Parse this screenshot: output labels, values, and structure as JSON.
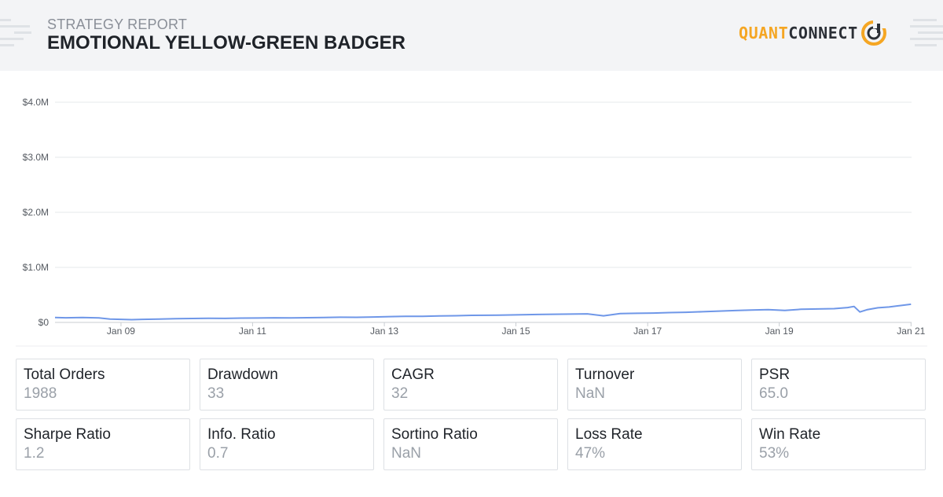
{
  "header": {
    "subtitle": "STRATEGY REPORT",
    "title": "EMOTIONAL YELLOW-GREEN BADGER",
    "brand_part1": "QUANT",
    "brand_part2": "CONNECT",
    "brand_color": "#f5a623"
  },
  "chart_data": {
    "type": "line",
    "title": "",
    "xlabel": "",
    "ylabel": "",
    "ylim": [
      0,
      4000000
    ],
    "y_ticks": [
      0,
      1000000,
      2000000,
      3000000,
      4000000
    ],
    "y_tick_labels": [
      "$0",
      "$1.0M",
      "$2.0M",
      "$3.0M",
      "$4.0M"
    ],
    "x_range": [
      "2008-01-01",
      "2021-01-04"
    ],
    "x_ticks": [
      "2009-01-01",
      "2011-01-01",
      "2013-01-01",
      "2015-01-01",
      "2017-01-01",
      "2019-01-01",
      "2021-01-01"
    ],
    "x_tick_labels": [
      "Jan 09",
      "Jan 11",
      "Jan 13",
      "Jan 15",
      "Jan 17",
      "Jan 19",
      "Jan 21"
    ],
    "grid": true,
    "legend": "none",
    "line_color": "#6f97e8",
    "series": [
      {
        "x": [
          "2008-01-01",
          "2008-03-01",
          "2008-06-01",
          "2008-09-01",
          "2008-11-01",
          "2009-01-01",
          "2009-03-01",
          "2009-05-01",
          "2009-08-01",
          "2009-11-01",
          "2010-02-01",
          "2010-05-01",
          "2010-08-01",
          "2010-11-01",
          "2011-02-01",
          "2011-05-01",
          "2011-08-01",
          "2011-11-01",
          "2012-02-01",
          "2012-05-01",
          "2012-08-01",
          "2012-11-01",
          "2013-02-01",
          "2013-05-01",
          "2013-08-01",
          "2013-11-01",
          "2014-02-01",
          "2014-05-01",
          "2014-08-01",
          "2014-11-01",
          "2015-02-01",
          "2015-05-01",
          "2015-08-01",
          "2015-11-01",
          "2016-02-01",
          "2016-05-01",
          "2016-08-01",
          "2016-11-01",
          "2017-02-01",
          "2017-05-01",
          "2017-08-01",
          "2017-11-01",
          "2018-02-01",
          "2018-05-01",
          "2018-08-01",
          "2018-11-01",
          "2019-02-01",
          "2019-05-01",
          "2019-08-01",
          "2019-11-01",
          "2020-01-15",
          "2020-02-20",
          "2020-03-23",
          "2020-05-01",
          "2020-07-01",
          "2020-09-01",
          "2020-11-01",
          "2021-01-01"
        ],
        "y": [
          90000,
          85000,
          88000,
          82000,
          60000,
          55000,
          50000,
          55000,
          62000,
          68000,
          72000,
          75000,
          73000,
          78000,
          80000,
          85000,
          82000,
          86000,
          90000,
          95000,
          93000,
          98000,
          105000,
          110000,
          112000,
          118000,
          122000,
          128000,
          130000,
          135000,
          140000,
          145000,
          148000,
          152000,
          155000,
          120000,
          160000,
          165000,
          170000,
          178000,
          185000,
          195000,
          205000,
          215000,
          225000,
          232000,
          218000,
          238000,
          245000,
          250000,
          270000,
          290000,
          190000,
          230000,
          265000,
          280000,
          305000,
          330000
        ]
      }
    ]
  },
  "stats": [
    {
      "name": "Total Orders",
      "value": "1988"
    },
    {
      "name": "Drawdown",
      "value": "33"
    },
    {
      "name": "CAGR",
      "value": "32"
    },
    {
      "name": "Turnover",
      "value": "NaN"
    },
    {
      "name": "PSR",
      "value": "65.0"
    },
    {
      "name": "Sharpe Ratio",
      "value": "1.2"
    },
    {
      "name": "Info. Ratio",
      "value": "0.7"
    },
    {
      "name": "Sortino Ratio",
      "value": "NaN"
    },
    {
      "name": "Loss Rate",
      "value": "47%"
    },
    {
      "name": "Win Rate",
      "value": "53%"
    }
  ]
}
